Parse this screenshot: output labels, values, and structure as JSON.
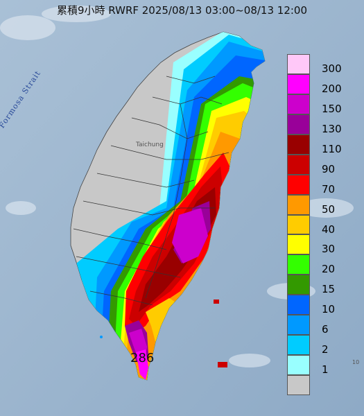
{
  "title": "累積9小時 RWRF 2025/08/13 03:00~08/13 12:00",
  "legend": {
    "levels": [
      {
        "label": "300",
        "color": "#ffc8f8"
      },
      {
        "label": "200",
        "color": "#ff00ff"
      },
      {
        "label": "150",
        "color": "#cc00cc"
      },
      {
        "label": "130",
        "color": "#990099"
      },
      {
        "label": "110",
        "color": "#990000"
      },
      {
        "label": "90",
        "color": "#cc0000"
      },
      {
        "label": "70",
        "color": "#ff0000"
      },
      {
        "label": "50",
        "color": "#ff9900"
      },
      {
        "label": "40",
        "color": "#ffcc00"
      },
      {
        "label": "30",
        "color": "#ffff00"
      },
      {
        "label": "20",
        "color": "#33ff00"
      },
      {
        "label": "15",
        "color": "#339900"
      },
      {
        "label": "10",
        "color": "#0066ff"
      },
      {
        "label": "6",
        "color": "#0099ff"
      },
      {
        "label": "2",
        "color": "#00ccff"
      },
      {
        "label": "1",
        "color": "#99ffff"
      },
      {
        "label": "",
        "color": "#c8c8c8"
      }
    ]
  },
  "max_value": "286",
  "sea_label": "Formosa Strait",
  "city_label": "Taichung",
  "edge_label": "10"
}
